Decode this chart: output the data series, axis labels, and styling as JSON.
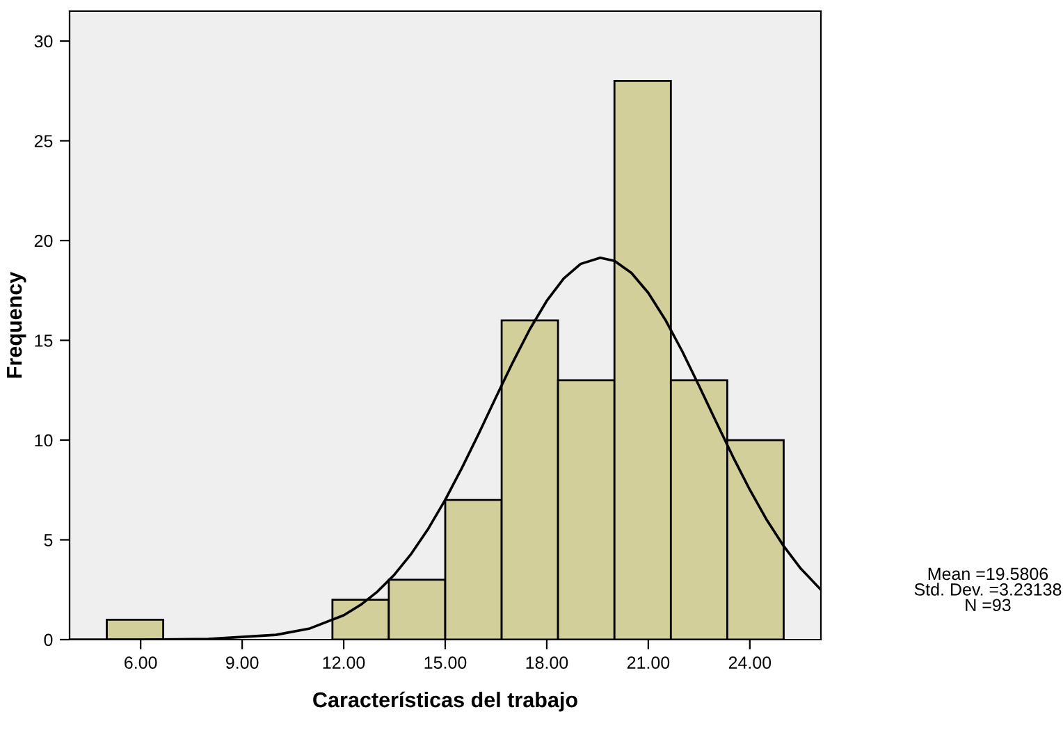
{
  "chart_data": {
    "type": "histogram",
    "xlabel": "Características del trabajo",
    "ylabel": "Frequency",
    "bins": [
      5,
      6.667,
      8.333,
      10,
      11.667,
      13.333,
      15,
      16.667,
      18.333,
      20,
      21.667,
      23.333,
      25
    ],
    "values": [
      1,
      0,
      0,
      0,
      2,
      3,
      7,
      16,
      13,
      28,
      13,
      10
    ],
    "color": "#d3cf9a",
    "series": [
      {
        "type": "line",
        "color": "#000000",
        "x": [
          3.9,
          6,
          8,
          10,
          11,
          12,
          12.5,
          13,
          13.5,
          14,
          14.5,
          15,
          15.5,
          16,
          16.5,
          17,
          17.5,
          18,
          18.5,
          19,
          19.58,
          20,
          20.5,
          21,
          21.5,
          22,
          22.5,
          23,
          23.5,
          24,
          24.5,
          25,
          25.5,
          26.1
        ],
        "values": [
          0,
          0,
          0.03,
          0.24,
          0.56,
          1.22,
          1.74,
          2.41,
          3.26,
          4.31,
          5.56,
          7.01,
          8.63,
          10.36,
          12.15,
          13.91,
          15.56,
          16.98,
          18.1,
          18.83,
          19.14,
          18.98,
          18.38,
          17.38,
          16.04,
          14.46,
          12.72,
          10.93,
          9.17,
          7.51,
          6.0,
          4.69,
          3.57,
          2.5
        ]
      }
    ],
    "xlim": [
      3.9,
      26.1
    ],
    "ylim": [
      0,
      31.5
    ],
    "xticks": [
      {
        "value": 6,
        "label": "6.00"
      },
      {
        "value": 9,
        "label": "9.00"
      },
      {
        "value": 12,
        "label": "12.00"
      },
      {
        "value": 15,
        "label": "15.00"
      },
      {
        "value": 18,
        "label": "18.00"
      },
      {
        "value": 21,
        "label": "21.00"
      },
      {
        "value": 24,
        "label": "24.00"
      }
    ],
    "yticks": [
      0,
      5,
      10,
      15,
      20,
      25,
      30
    ],
    "annotations": [
      "Mean =19.5806\nStd. Dev. =3.23138\nN =93"
    ],
    "grid": false,
    "legend": false
  }
}
